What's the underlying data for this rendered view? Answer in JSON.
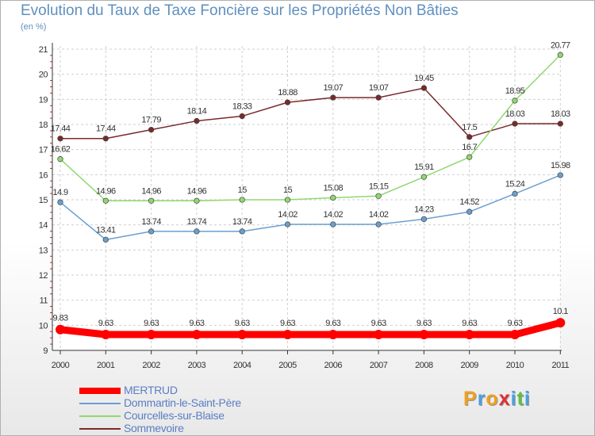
{
  "title": "Evolution du Taux de Taxe Foncière sur les Propriétés Non Bâties",
  "unit": "(en %)",
  "logo": {
    "letters": [
      "P",
      "r",
      "o",
      "x",
      "i",
      "t",
      "i"
    ],
    "colors": [
      "#f0a020",
      "#4aa0e0",
      "#f0a020",
      "#e03030",
      "#4aa0e0",
      "#60c040",
      "#4aa0e0"
    ]
  },
  "chart_data": {
    "type": "line",
    "x": [
      "2000",
      "2001",
      "2002",
      "2003",
      "2004",
      "2005",
      "2006",
      "2007",
      "2008",
      "2009",
      "2010",
      "2011"
    ],
    "ylim": [
      9,
      21
    ],
    "yticks": [
      "9",
      "10",
      "11",
      "12",
      "13",
      "14",
      "15",
      "16",
      "17",
      "18",
      "19",
      "20",
      "21"
    ],
    "grid": true,
    "legend_position": "bottom-left",
    "series": [
      {
        "name": "MERTRUD",
        "color": "#ff0000",
        "values": [
          9.83,
          9.63,
          9.63,
          9.63,
          9.63,
          9.63,
          9.63,
          9.63,
          9.63,
          9.63,
          9.63,
          10.1
        ],
        "labels": [
          "9.83",
          "9.63",
          "9.63",
          "9.63",
          "9.63",
          "9.63",
          "9.63",
          "9.63",
          "9.63",
          "9.63",
          "9.63",
          "10.1"
        ]
      },
      {
        "name": "Dommartin-le-Saint-Père",
        "color": "#6a9fd0",
        "values": [
          14.9,
          13.41,
          13.74,
          13.74,
          13.74,
          14.02,
          14.02,
          14.02,
          14.23,
          14.52,
          15.24,
          15.98
        ],
        "labels": [
          "14.9",
          "13.41",
          "13.74",
          "13.74",
          "13.74",
          "14.02",
          "14.02",
          "14.02",
          "14.23",
          "14.52",
          "15.24",
          "15.98"
        ]
      },
      {
        "name": "Courcelles-sur-Blaise",
        "color": "#90d870",
        "values": [
          16.62,
          14.96,
          14.96,
          14.96,
          15,
          15,
          15.08,
          15.15,
          15.91,
          16.7,
          18.95,
          20.77
        ],
        "labels": [
          "16.62",
          "14.96",
          "14.96",
          "14.96",
          "15",
          "15",
          "15.08",
          "15.15",
          "15.91",
          "16.7",
          "18.95",
          "20.77"
        ]
      },
      {
        "name": "Sommevoire",
        "color": "#7a2a2a",
        "values": [
          17.44,
          17.44,
          17.79,
          18.14,
          18.33,
          18.88,
          19.07,
          19.07,
          19.45,
          17.5,
          18.03,
          18.03
        ],
        "labels": [
          "17.44",
          "17.44",
          "17.79",
          "18.14",
          "18.33",
          "18.88",
          "19.07",
          "19.07",
          "19.45",
          "17.5",
          "18.03",
          "18.03"
        ]
      }
    ]
  }
}
